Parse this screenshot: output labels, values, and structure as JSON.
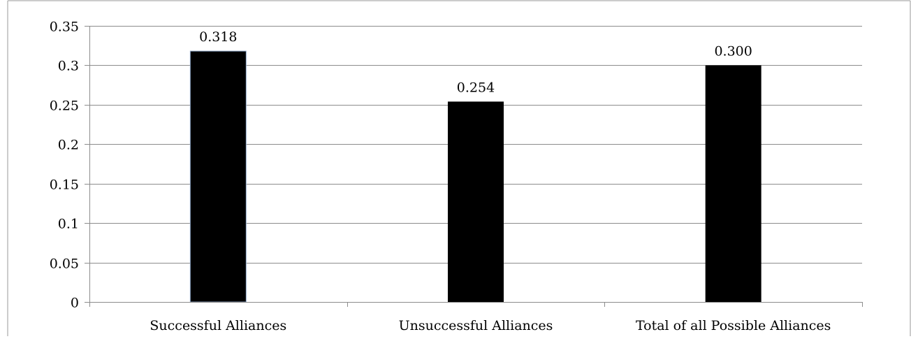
{
  "chart_data": {
    "type": "bar",
    "categories": [
      "Successful Alliances",
      "Unsuccessful Alliances",
      "Total of all Possible Alliances"
    ],
    "values": [
      0.318,
      0.254,
      0.3
    ],
    "data_labels": [
      "0.318",
      "0.254",
      "0.300"
    ],
    "title": "",
    "xlabel": "",
    "ylabel": "",
    "ylim": [
      0,
      0.35
    ],
    "yticks": [
      0,
      0.05,
      0.1,
      0.15,
      0.2,
      0.25,
      0.3,
      0.35
    ],
    "ytick_labels": [
      "0",
      "0.05",
      "0.1",
      "0.15",
      "0.2",
      "0.25",
      "0.3",
      "0.35"
    ],
    "grid": true,
    "legend": "none",
    "colors": {
      "bar": "#000000",
      "bar_first_edge": "#8fa9c9",
      "gridline": "#8c8c8c",
      "axis": "#8c8c8c",
      "frame": "#9a9a9a"
    }
  }
}
